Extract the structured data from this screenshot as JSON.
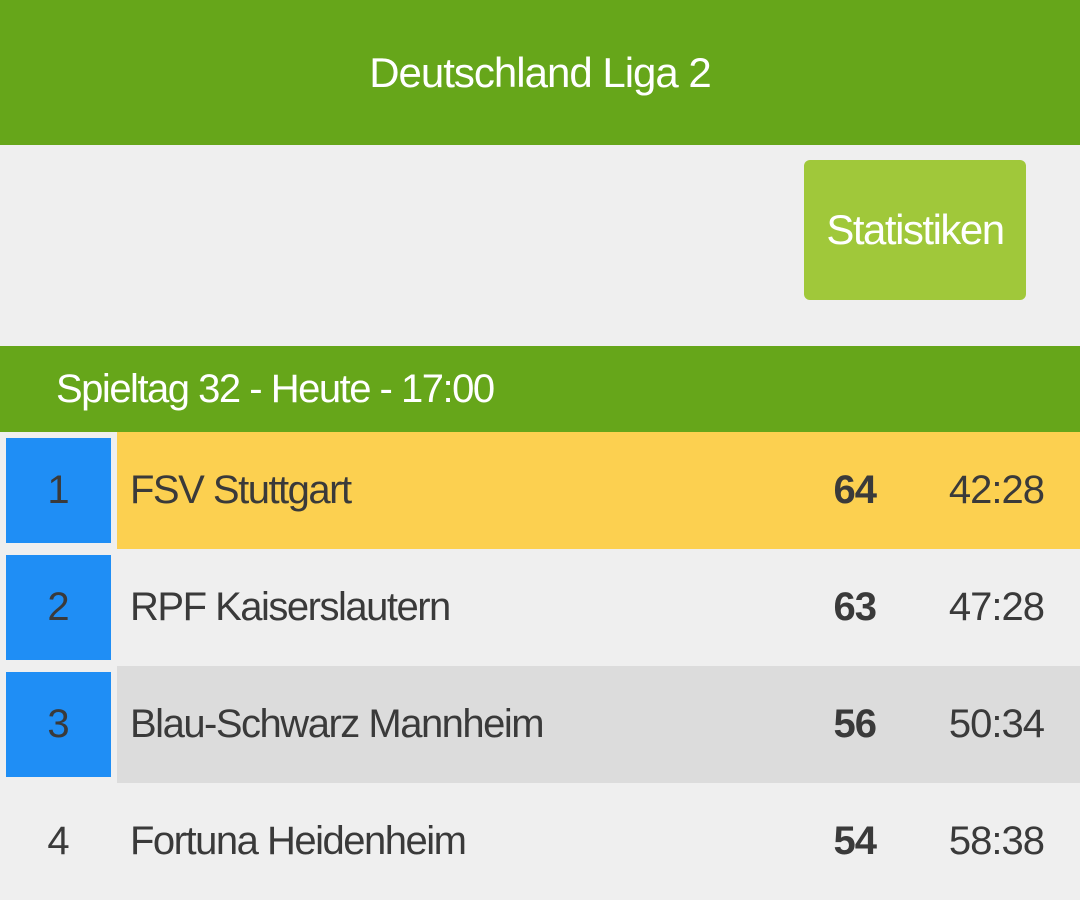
{
  "header": {
    "title": "Deutschland Liga 2"
  },
  "toolbar": {
    "stats_label": "Statistiken"
  },
  "matchday": {
    "label": "Spieltag 32 - Heute - 17:00"
  },
  "colors": {
    "header_green": "#66a61a",
    "button_green": "#a0c83a",
    "promotion_blue": "#1f8ef5",
    "highlight_yellow": "#fcd050",
    "alt_row_gray": "#dcdcdc"
  },
  "table": {
    "rows": [
      {
        "rank": "1",
        "team": "FSV Stuttgart",
        "points": "64",
        "goals": "42:28"
      },
      {
        "rank": "2",
        "team": "RPF Kaiserslautern",
        "points": "63",
        "goals": "47:28"
      },
      {
        "rank": "3",
        "team": "Blau-Schwarz Mannheim",
        "points": "56",
        "goals": "50:34"
      },
      {
        "rank": "4",
        "team": "Fortuna Heidenheim",
        "points": "54",
        "goals": "58:38"
      }
    ]
  }
}
